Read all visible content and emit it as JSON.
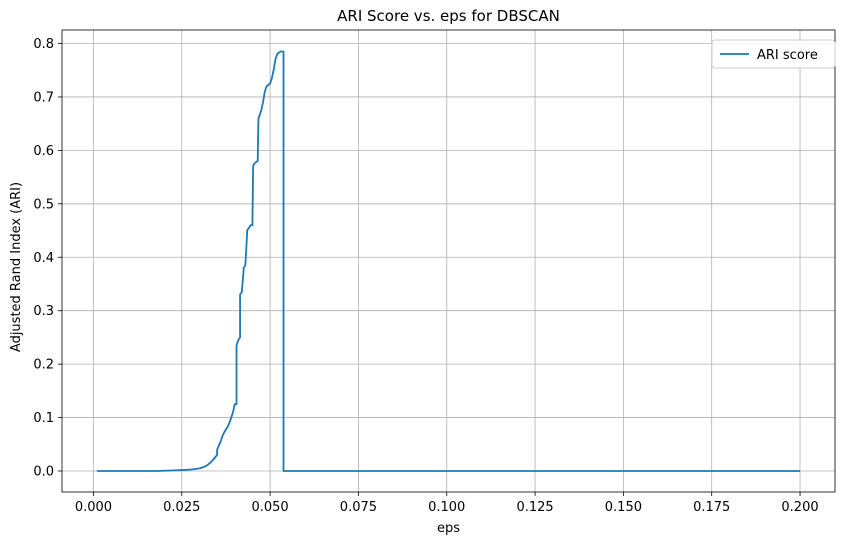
{
  "chart_data": {
    "type": "line",
    "title": "ARI Score vs. eps for DBSCAN",
    "xlabel": "eps",
    "ylabel": "Adjusted Rand Index (ARI)",
    "xlim": [
      -0.0089,
      0.2099
    ],
    "ylim": [
      -0.0393,
      0.8253
    ],
    "xticks": [
      0.0,
      0.025,
      0.05,
      0.075,
      0.1,
      0.125,
      0.15,
      0.175,
      0.2
    ],
    "xtick_labels": [
      "0.000",
      "0.025",
      "0.050",
      "0.075",
      "0.100",
      "0.125",
      "0.150",
      "0.175",
      "0.200"
    ],
    "yticks": [
      0.0,
      0.1,
      0.2,
      0.3,
      0.4,
      0.5,
      0.6,
      0.7,
      0.8
    ],
    "ytick_labels": [
      "0.0",
      "0.1",
      "0.2",
      "0.3",
      "0.4",
      "0.5",
      "0.6",
      "0.7",
      "0.8"
    ],
    "grid": true,
    "legend_position": "upper right",
    "series": [
      {
        "name": "ARI score",
        "color": "#1f77b4",
        "x": [
          0.001,
          0.01,
          0.018,
          0.022,
          0.026,
          0.028,
          0.03,
          0.031,
          0.032,
          0.033,
          0.034,
          0.035,
          0.035,
          0.036,
          0.0365,
          0.037,
          0.0375,
          0.038,
          0.0385,
          0.039,
          0.0395,
          0.04,
          0.0405,
          0.0405,
          0.041,
          0.0415,
          0.0415,
          0.042,
          0.0425,
          0.0425,
          0.043,
          0.0435,
          0.0435,
          0.044,
          0.0445,
          0.045,
          0.0452,
          0.0455,
          0.046,
          0.0465,
          0.0467,
          0.047,
          0.0475,
          0.048,
          0.0485,
          0.049,
          0.05,
          0.0505,
          0.051,
          0.0515,
          0.052,
          0.0525,
          0.053,
          0.0535,
          0.0538,
          0.0538,
          0.06,
          0.1,
          0.15,
          0.2
        ],
        "y": [
          0.0,
          0.0,
          0.0,
          0.001,
          0.002,
          0.003,
          0.005,
          0.007,
          0.01,
          0.015,
          0.022,
          0.03,
          0.04,
          0.055,
          0.065,
          0.072,
          0.078,
          0.083,
          0.09,
          0.1,
          0.11,
          0.125,
          0.125,
          0.235,
          0.245,
          0.25,
          0.33,
          0.335,
          0.375,
          0.38,
          0.385,
          0.445,
          0.45,
          0.455,
          0.46,
          0.46,
          0.57,
          0.575,
          0.578,
          0.58,
          0.66,
          0.665,
          0.675,
          0.69,
          0.71,
          0.72,
          0.725,
          0.735,
          0.75,
          0.77,
          0.78,
          0.783,
          0.785,
          0.785,
          0.785,
          0.0,
          0.0,
          0.0,
          0.0,
          0.0
        ]
      }
    ]
  }
}
